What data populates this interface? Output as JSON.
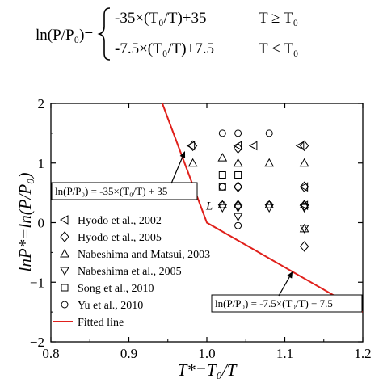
{
  "equation": {
    "lhs": "ln(P/P₀)=",
    "case1_expr": "-35×(T₀/T)+35",
    "case1_cond": "T ≥ T₀",
    "case2_expr": "-7.5×(T₀/T)+7.5",
    "case2_cond": "T < T₀"
  },
  "chart_data": {
    "type": "scatter",
    "xlabel": "T*=T₀/T",
    "ylabel": "lnP*=ln(P/P₀)",
    "xlim": [
      0.8,
      1.2
    ],
    "ylim": [
      -2,
      2
    ],
    "xticks": [
      0.8,
      0.9,
      1.0,
      1.1,
      1.2
    ],
    "xtick_labels": [
      "0.8",
      "0.9",
      "1.0",
      "1.1",
      "1.2"
    ],
    "yticks": [
      -2,
      -1,
      0,
      1,
      2
    ],
    "ytick_labels": [
      "−2",
      "−1",
      "0",
      "1",
      "2"
    ],
    "grid": false,
    "legend_position": "bottom-left",
    "series": [
      {
        "name": "Hyodo et al., 2002",
        "marker": "triangle-left",
        "points": [
          [
            0.98,
            1.29
          ],
          [
            1.04,
            1.29
          ],
          [
            1.06,
            1.29
          ],
          [
            1.12,
            1.29
          ],
          [
            1.125,
            0.6
          ],
          [
            1.125,
            0.29
          ]
        ]
      },
      {
        "name": "Hyodo et al., 2005",
        "marker": "diamond",
        "points": [
          [
            0.982,
            1.29
          ],
          [
            1.04,
            1.25
          ],
          [
            1.04,
            0.6
          ],
          [
            1.04,
            0.29
          ],
          [
            1.125,
            1.29
          ],
          [
            1.125,
            0.6
          ],
          [
            1.125,
            0.29
          ],
          [
            1.125,
            -0.4
          ]
        ]
      },
      {
        "name": "Nabeshima and Matsui, 2003",
        "marker": "triangle-up",
        "points": [
          [
            1.02,
            1.09
          ],
          [
            1.04,
            1.0
          ],
          [
            1.08,
            1.0
          ],
          [
            1.125,
            1.0
          ],
          [
            0.982,
            1.0
          ],
          [
            1.02,
            0.3
          ],
          [
            1.04,
            0.3
          ],
          [
            1.08,
            0.3
          ],
          [
            1.125,
            0.3
          ],
          [
            1.125,
            -0.1
          ]
        ]
      },
      {
        "name": "Nabeshima et al., 2005",
        "marker": "triangle-down",
        "points": [
          [
            1.02,
            0.25
          ],
          [
            1.04,
            0.25
          ],
          [
            1.08,
            0.25
          ],
          [
            1.125,
            0.25
          ],
          [
            1.04,
            0.1
          ],
          [
            1.125,
            -0.1
          ]
        ]
      },
      {
        "name": "Song et al., 2010",
        "marker": "square",
        "points": [
          [
            1.02,
            0.8
          ],
          [
            1.04,
            0.8
          ],
          [
            1.02,
            0.6
          ]
        ]
      },
      {
        "name": "Yu et al., 2010",
        "marker": "circle",
        "points": [
          [
            1.02,
            1.5
          ],
          [
            1.04,
            1.5
          ],
          [
            1.08,
            1.5
          ],
          [
            1.02,
            0.6
          ],
          [
            1.04,
            0.6
          ],
          [
            1.04,
            -0.05
          ],
          [
            1.02,
            0.3
          ],
          [
            1.08,
            0.3
          ]
        ]
      },
      {
        "name": "Fitted line",
        "type": "line",
        "color": "#e0201b",
        "points": [
          [
            0.9429,
            2.0
          ],
          [
            1.0,
            0.0
          ],
          [
            1.2,
            -1.5
          ]
        ]
      }
    ],
    "annotations": [
      {
        "text": "ln(P/P₀) = -35×(T₀/T) + 35",
        "arrow_to": [
          0.972,
          1.2
        ]
      },
      {
        "text": "L",
        "at": [
          0.999,
          0.22
        ]
      },
      {
        "text": "ln(P/P₀) = -7.5×(T₀/T) + 7.5",
        "arrow_to": [
          1.11,
          -0.82
        ]
      }
    ]
  }
}
